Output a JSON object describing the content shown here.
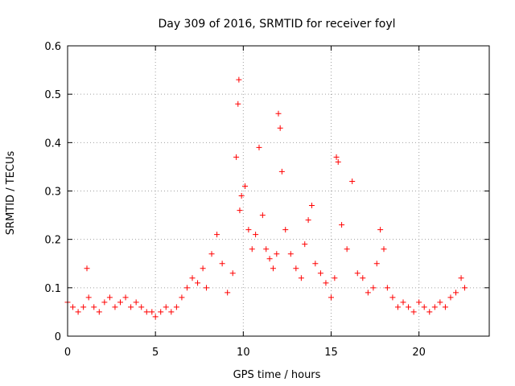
{
  "chart_data": {
    "type": "scatter",
    "title": "Day 309 of 2016, SRMTID for receiver foyl",
    "xlabel": "GPS time / hours",
    "ylabel": "SRMTID / TECUs",
    "xlim": [
      0,
      24
    ],
    "ylim": [
      0,
      0.6
    ],
    "x_ticks": [
      0,
      5,
      10,
      15,
      20
    ],
    "y_ticks": [
      0,
      0.1,
      0.2,
      0.3,
      0.4,
      0.5,
      0.6
    ],
    "x_tick_labels": [
      "0",
      "5",
      "10",
      "15",
      "20"
    ],
    "y_tick_labels": [
      "0",
      "0.1",
      "0.2",
      "0.3",
      "0.4",
      "0.5",
      "0.6"
    ],
    "grid": true,
    "marker": "+",
    "marker_color": "#ff0000",
    "series": [
      {
        "name": "SRMTID",
        "x": [
          0.0,
          0.3,
          0.6,
          0.9,
          1.1,
          1.2,
          1.5,
          1.8,
          2.1,
          2.4,
          2.7,
          3.0,
          3.3,
          3.6,
          3.9,
          4.2,
          4.5,
          4.8,
          5.0,
          5.3,
          5.6,
          5.9,
          6.2,
          6.5,
          6.8,
          7.1,
          7.4,
          7.7,
          7.9,
          8.2,
          8.5,
          8.8,
          9.1,
          9.4,
          9.6,
          9.7,
          9.75,
          9.8,
          9.9,
          10.1,
          10.3,
          10.5,
          10.7,
          10.9,
          11.1,
          11.3,
          11.5,
          11.7,
          11.9,
          12.0,
          12.1,
          12.2,
          12.4,
          12.7,
          13.0,
          13.3,
          13.5,
          13.7,
          13.9,
          14.1,
          14.4,
          14.7,
          15.0,
          15.2,
          15.3,
          15.4,
          15.6,
          15.9,
          16.2,
          16.5,
          16.8,
          17.1,
          17.4,
          17.6,
          17.8,
          18.0,
          18.2,
          18.5,
          18.8,
          19.1,
          19.4,
          19.7,
          20.0,
          20.3,
          20.6,
          20.9,
          21.2,
          21.5,
          21.8,
          22.1,
          22.4,
          22.6
        ],
        "y": [
          0.07,
          0.06,
          0.05,
          0.06,
          0.14,
          0.08,
          0.06,
          0.05,
          0.07,
          0.08,
          0.06,
          0.07,
          0.08,
          0.06,
          0.07,
          0.06,
          0.05,
          0.05,
          0.04,
          0.05,
          0.06,
          0.05,
          0.06,
          0.08,
          0.1,
          0.12,
          0.11,
          0.14,
          0.1,
          0.17,
          0.21,
          0.15,
          0.09,
          0.13,
          0.37,
          0.48,
          0.53,
          0.26,
          0.29,
          0.31,
          0.22,
          0.18,
          0.21,
          0.39,
          0.25,
          0.18,
          0.16,
          0.14,
          0.17,
          0.46,
          0.43,
          0.34,
          0.22,
          0.17,
          0.14,
          0.12,
          0.19,
          0.24,
          0.27,
          0.15,
          0.13,
          0.11,
          0.08,
          0.12,
          0.37,
          0.36,
          0.23,
          0.18,
          0.32,
          0.13,
          0.12,
          0.09,
          0.1,
          0.15,
          0.22,
          0.18,
          0.1,
          0.08,
          0.06,
          0.07,
          0.06,
          0.05,
          0.07,
          0.06,
          0.05,
          0.06,
          0.07,
          0.06,
          0.08,
          0.09,
          0.12,
          0.1
        ]
      }
    ]
  }
}
